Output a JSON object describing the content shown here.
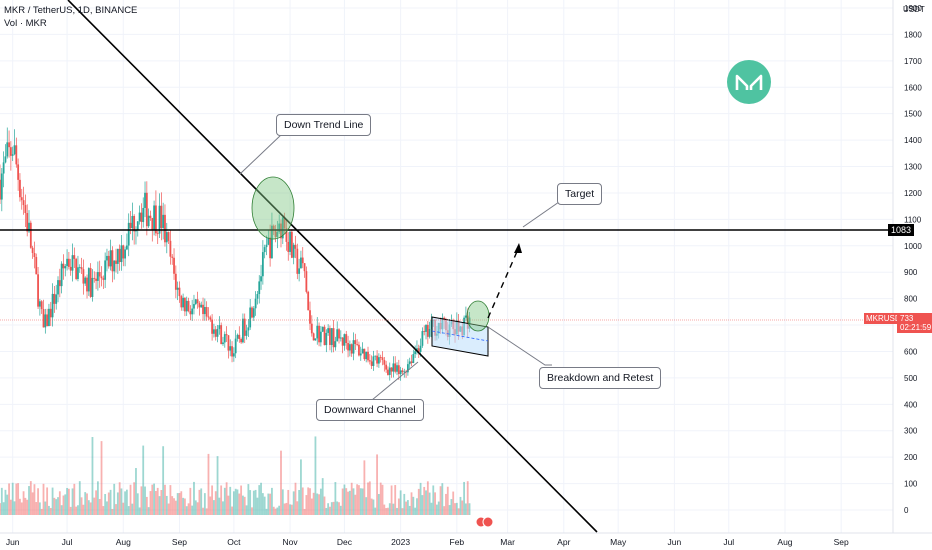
{
  "header": {
    "symbol_line": "MKR / TetherUS, 1D, BINANCE",
    "volume_line": "Vol · MKR"
  },
  "axis": {
    "currency": "USDT",
    "price_ticks": [
      "1900",
      "1800",
      "1700",
      "1600",
      "1500",
      "1400",
      "1300",
      "1200",
      "1100",
      "1000",
      "900",
      "800",
      "700",
      "600",
      "500",
      "400",
      "300",
      "200",
      "100",
      "0"
    ],
    "time_ticks": [
      "Jun",
      "Jul",
      "Aug",
      "Sep",
      "Oct",
      "Nov",
      "Dec",
      "2023",
      "Feb",
      "Mar",
      "Apr",
      "May",
      "Jun",
      "Jul",
      "Aug",
      "Sep"
    ]
  },
  "annotations": {
    "down_trend_line": "Down Trend Line",
    "target": "Target",
    "downward_channel": "Downward Channel",
    "breakdown_retest": "Breakdown and Retest"
  },
  "price_labels": {
    "level": "1083",
    "symbol": "MKRUSDT",
    "current": "733",
    "countdown": "02:21:59"
  },
  "colors": {
    "up": "#26a69a",
    "down": "#ef5350",
    "level_line": "#000000",
    "ellipse": "#81c784",
    "channel": "#bbdefb",
    "logo": "#4fc3a1"
  },
  "chart_data": {
    "type": "candlestick",
    "instrument": "MKR / TetherUS",
    "timeframe": "1D",
    "exchange": "BINANCE",
    "y_unit": "USDT",
    "ylim": [
      0,
      1900
    ],
    "horizontal_level": 1083,
    "last_price": 733,
    "price_path": [
      {
        "date": "2022-05-25",
        "close": 1250
      },
      {
        "date": "2022-06-01",
        "close": 1380
      },
      {
        "date": "2022-06-10",
        "close": 1050
      },
      {
        "date": "2022-06-18",
        "close": 680
      },
      {
        "date": "2022-07-01",
        "close": 950
      },
      {
        "date": "2022-07-15",
        "close": 850
      },
      {
        "date": "2022-08-01",
        "close": 1000
      },
      {
        "date": "2022-08-10",
        "close": 1150
      },
      {
        "date": "2022-08-22",
        "close": 1100
      },
      {
        "date": "2022-09-01",
        "close": 800
      },
      {
        "date": "2022-09-20",
        "close": 700
      },
      {
        "date": "2022-10-01",
        "close": 600
      },
      {
        "date": "2022-10-10",
        "close": 750
      },
      {
        "date": "2022-10-20",
        "close": 1000
      },
      {
        "date": "2022-10-28",
        "close": 1100
      },
      {
        "date": "2022-11-03",
        "close": 950
      },
      {
        "date": "2022-11-09",
        "close": 900
      },
      {
        "date": "2022-11-12",
        "close": 680
      },
      {
        "date": "2022-12-01",
        "close": 640
      },
      {
        "date": "2022-12-20",
        "close": 560
      },
      {
        "date": "2023-01-01",
        "close": 510
      },
      {
        "date": "2023-01-12",
        "close": 640
      },
      {
        "date": "2023-01-20",
        "close": 700
      },
      {
        "date": "2023-02-01",
        "close": 680
      },
      {
        "date": "2023-02-08",
        "close": 733
      }
    ]
  }
}
